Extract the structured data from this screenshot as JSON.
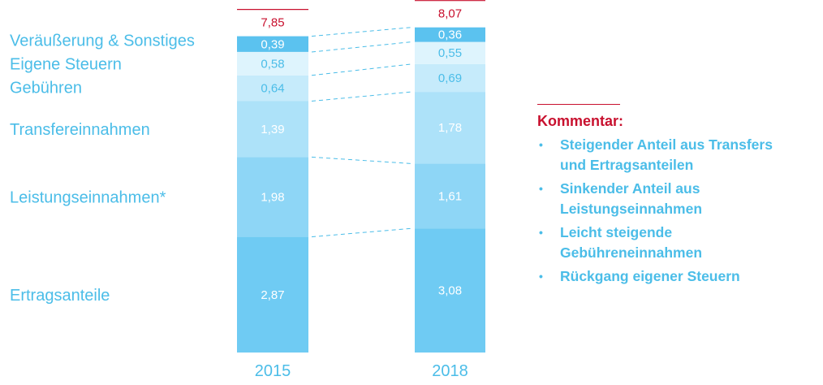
{
  "chart_data": {
    "type": "bar",
    "stacked": true,
    "categories": [
      "2015",
      "2018"
    ],
    "totals": [
      "7,85",
      "8,07"
    ],
    "series": [
      {
        "name": "Ertragsanteile",
        "values": [
          2.87,
          3.08
        ],
        "labels": [
          "2,87",
          "3,08"
        ],
        "color": "#6fcbf3",
        "text_color": "#ffffff"
      },
      {
        "name": "Leistungseinnahmen*",
        "values": [
          1.98,
          1.61
        ],
        "labels": [
          "1,98",
          "1,61"
        ],
        "color": "#8ed6f6",
        "text_color": "#ffffff"
      },
      {
        "name": "Transfereinnahmen",
        "values": [
          1.39,
          1.78
        ],
        "labels": [
          "1,39",
          "1,78"
        ],
        "color": "#ade2f9",
        "text_color": "#ffffff"
      },
      {
        "name": "Gebühren",
        "values": [
          0.64,
          0.69
        ],
        "labels": [
          "0,64",
          "0,69"
        ],
        "color": "#c6ebfb",
        "text_color": "#4bbde8"
      },
      {
        "name": "Eigene Steuern",
        "values": [
          0.58,
          0.55
        ],
        "labels": [
          "0,58",
          "0,55"
        ],
        "color": "#def4fd",
        "text_color": "#4bbde8"
      },
      {
        "name": "Veräußerung & Sonstiges",
        "values": [
          0.39,
          0.36
        ],
        "labels": [
          "0,39",
          "0,36"
        ],
        "color": "#5bc2ef",
        "text_color": "#ffffff"
      }
    ],
    "grid": false,
    "legend": "left"
  },
  "commentary": {
    "title": "Kommentar:",
    "bullet": "•",
    "items": [
      {
        "lines": [
          "Steigender Anteil aus Transfers",
          "und Ertragsanteilen"
        ]
      },
      {
        "lines": [
          "Sinkender Anteil aus",
          "Leistungseinnahmen"
        ]
      },
      {
        "lines": [
          "Leicht steigende",
          "Gebühreneinnahmen"
        ]
      },
      {
        "lines": [
          "Rückgang eigener Steuern"
        ]
      }
    ]
  }
}
